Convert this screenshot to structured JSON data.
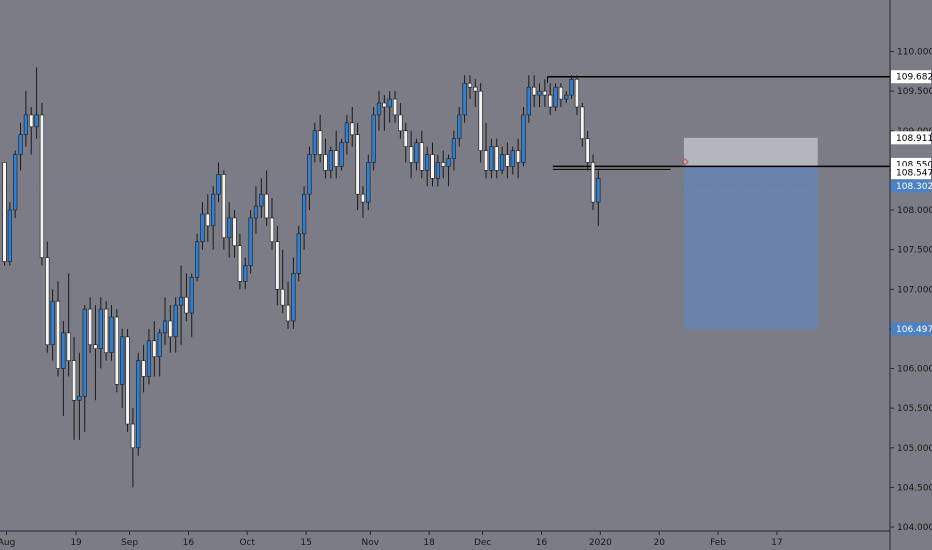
{
  "chart_data": {
    "type": "candlestick",
    "title": "",
    "xlabel": "",
    "ylabel": "",
    "ylim": [
      103.95,
      110.65
    ],
    "y_ticks": [
      "104.000",
      "104.500",
      "105.000",
      "105.500",
      "106.000",
      "106.500",
      "107.000",
      "107.500",
      "108.000",
      "108.500",
      "109.000",
      "109.500",
      "110.000"
    ],
    "x_ticks": [
      {
        "label": "Aug",
        "bar": 0
      },
      {
        "label": "19",
        "bar": 13
      },
      {
        "label": "Sep",
        "bar": 23
      },
      {
        "label": "16",
        "bar": 34
      },
      {
        "label": "Oct",
        "bar": 45
      },
      {
        "label": "15",
        "bar": 56
      },
      {
        "label": "Nov",
        "bar": 68
      },
      {
        "label": "18",
        "bar": 79
      },
      {
        "label": "Dec",
        "bar": 89
      },
      {
        "label": "16",
        "bar": 100
      },
      {
        "label": "2020",
        "bar": 111
      },
      {
        "label": "20",
        "bar": 122
      },
      {
        "label": "Feb",
        "bar": 133
      },
      {
        "label": "17",
        "bar": 144
      }
    ],
    "bars": [
      [
        108.6,
        108.6,
        107.3,
        107.35
      ],
      [
        107.35,
        108.1,
        107.3,
        108.0
      ],
      [
        108.0,
        108.75,
        107.9,
        108.7
      ],
      [
        108.7,
        109.1,
        108.5,
        108.95
      ],
      [
        108.95,
        109.5,
        108.8,
        109.2
      ],
      [
        109.2,
        109.3,
        108.7,
        109.05
      ],
      [
        109.05,
        109.8,
        108.9,
        109.2
      ],
      [
        109.2,
        109.35,
        107.3,
        107.4
      ],
      [
        107.4,
        107.6,
        106.2,
        106.3
      ],
      [
        106.3,
        107.0,
        106.1,
        106.85
      ],
      [
        106.85,
        107.1,
        105.9,
        106.0
      ],
      [
        106.0,
        106.6,
        105.4,
        106.45
      ],
      [
        106.45,
        107.2,
        105.9,
        106.1
      ],
      [
        106.1,
        106.4,
        105.1,
        105.6
      ],
      [
        105.6,
        106.2,
        105.1,
        105.65
      ],
      [
        105.65,
        106.8,
        105.2,
        106.75
      ],
      [
        106.75,
        106.9,
        106.2,
        106.3
      ],
      [
        106.3,
        106.8,
        105.6,
        106.25
      ],
      [
        106.25,
        106.9,
        106.0,
        106.75
      ],
      [
        106.75,
        106.85,
        106.1,
        106.2
      ],
      [
        106.2,
        106.8,
        106.1,
        106.65
      ],
      [
        106.65,
        106.75,
        105.7,
        105.8
      ],
      [
        105.8,
        106.5,
        105.5,
        106.4
      ],
      [
        106.4,
        106.5,
        105.2,
        105.3
      ],
      [
        105.3,
        105.5,
        104.5,
        105.0
      ],
      [
        105.0,
        106.2,
        104.9,
        106.1
      ],
      [
        106.1,
        106.3,
        105.7,
        105.9
      ],
      [
        105.9,
        106.5,
        105.8,
        106.35
      ],
      [
        106.35,
        106.6,
        105.9,
        106.15
      ],
      [
        106.15,
        106.5,
        105.9,
        106.45
      ],
      [
        106.45,
        106.9,
        106.3,
        106.6
      ],
      [
        106.6,
        106.8,
        106.2,
        106.4
      ],
      [
        106.4,
        106.9,
        106.2,
        106.8
      ],
      [
        106.8,
        107.3,
        106.3,
        106.9
      ],
      [
        106.9,
        107.2,
        106.6,
        106.7
      ],
      [
        106.7,
        107.2,
        106.4,
        107.15
      ],
      [
        107.15,
        107.7,
        107.1,
        107.6
      ],
      [
        107.6,
        108.1,
        107.5,
        107.95
      ],
      [
        107.95,
        108.2,
        107.6,
        107.8
      ],
      [
        107.8,
        108.3,
        107.5,
        108.2
      ],
      [
        108.2,
        108.6,
        108.1,
        108.45
      ],
      [
        108.45,
        108.5,
        107.5,
        107.65
      ],
      [
        107.65,
        108.1,
        107.4,
        107.9
      ],
      [
        107.9,
        108.0,
        107.4,
        107.55
      ],
      [
        107.55,
        107.7,
        107.0,
        107.1
      ],
      [
        107.1,
        107.4,
        107.0,
        107.3
      ],
      [
        107.3,
        108.0,
        107.2,
        107.9
      ],
      [
        107.9,
        108.3,
        107.7,
        108.05
      ],
      [
        108.05,
        108.4,
        107.9,
        108.2
      ],
      [
        108.2,
        108.5,
        107.8,
        107.9
      ],
      [
        107.9,
        108.15,
        107.5,
        107.6
      ],
      [
        107.6,
        107.8,
        106.8,
        107.0
      ],
      [
        107.0,
        107.5,
        106.7,
        106.8
      ],
      [
        106.8,
        107.1,
        106.5,
        106.6
      ],
      [
        106.6,
        107.4,
        106.5,
        107.2
      ],
      [
        107.2,
        107.8,
        107.1,
        107.7
      ],
      [
        107.7,
        108.3,
        107.5,
        108.2
      ],
      [
        108.2,
        108.8,
        108.0,
        108.7
      ],
      [
        108.7,
        109.1,
        108.6,
        109.0
      ],
      [
        109.0,
        109.2,
        108.6,
        108.7
      ],
      [
        108.7,
        108.9,
        108.4,
        108.5
      ],
      [
        108.5,
        108.8,
        108.4,
        108.75
      ],
      [
        108.75,
        109.0,
        108.4,
        108.55
      ],
      [
        108.55,
        108.9,
        108.5,
        108.85
      ],
      [
        108.85,
        109.2,
        108.7,
        109.1
      ],
      [
        109.1,
        109.3,
        108.8,
        108.95
      ],
      [
        108.95,
        109.1,
        108.0,
        108.2
      ],
      [
        108.2,
        108.3,
        107.9,
        108.1
      ],
      [
        108.1,
        108.7,
        108.0,
        108.6
      ],
      [
        108.6,
        109.3,
        108.5,
        109.2
      ],
      [
        109.2,
        109.5,
        109.0,
        109.35
      ],
      [
        109.35,
        109.45,
        109.0,
        109.3
      ],
      [
        109.3,
        109.5,
        109.1,
        109.4
      ],
      [
        109.4,
        109.5,
        109.1,
        109.2
      ],
      [
        109.2,
        109.35,
        108.9,
        109.0
      ],
      [
        109.0,
        109.1,
        108.6,
        108.8
      ],
      [
        108.8,
        109.0,
        108.4,
        108.6
      ],
      [
        108.6,
        108.9,
        108.5,
        108.85
      ],
      [
        108.85,
        109.0,
        108.4,
        108.5
      ],
      [
        108.5,
        108.8,
        108.3,
        108.7
      ],
      [
        108.7,
        108.85,
        108.3,
        108.4
      ],
      [
        108.4,
        108.7,
        108.3,
        108.6
      ],
      [
        108.6,
        108.75,
        108.4,
        108.55
      ],
      [
        108.55,
        108.7,
        108.3,
        108.65
      ],
      [
        108.65,
        109.0,
        108.5,
        108.9
      ],
      [
        108.9,
        109.3,
        108.8,
        109.2
      ],
      [
        109.2,
        109.7,
        109.1,
        109.6
      ],
      [
        109.6,
        109.7,
        109.4,
        109.55
      ],
      [
        109.55,
        109.65,
        109.3,
        109.5
      ],
      [
        109.5,
        109.6,
        108.6,
        108.75
      ],
      [
        108.75,
        109.1,
        108.4,
        108.5
      ],
      [
        108.5,
        108.9,
        108.4,
        108.8
      ],
      [
        108.8,
        108.9,
        108.4,
        108.5
      ],
      [
        108.5,
        108.8,
        108.45,
        108.7
      ],
      [
        108.7,
        108.85,
        108.4,
        108.55
      ],
      [
        108.55,
        108.8,
        108.45,
        108.75
      ],
      [
        108.75,
        108.9,
        108.4,
        108.6
      ],
      [
        108.6,
        109.3,
        108.55,
        109.2
      ],
      [
        109.2,
        109.7,
        109.1,
        109.55
      ],
      [
        109.55,
        109.7,
        109.3,
        109.45
      ],
      [
        109.45,
        109.6,
        109.3,
        109.5
      ],
      [
        109.5,
        109.65,
        109.3,
        109.45
      ],
      [
        109.45,
        109.6,
        109.2,
        109.3
      ],
      [
        109.3,
        109.6,
        109.25,
        109.55
      ],
      [
        109.55,
        109.6,
        109.3,
        109.4
      ],
      [
        109.4,
        109.5,
        109.35,
        109.45
      ],
      [
        109.45,
        109.7,
        109.4,
        109.65
      ],
      [
        109.65,
        109.7,
        109.2,
        109.3
      ],
      [
        109.3,
        109.35,
        108.8,
        108.9
      ],
      [
        108.9,
        109.0,
        108.5,
        108.6
      ],
      [
        108.6,
        108.7,
        108.0,
        108.1
      ],
      [
        108.1,
        108.5,
        107.8,
        108.4
      ]
    ],
    "current_price": 108.302,
    "levels": [
      {
        "value": 109.682,
        "label": "109.682"
      },
      {
        "value": 108.55,
        "label": "108.550"
      }
    ],
    "position": {
      "entry": 108.547,
      "stop": 108.911,
      "target": 106.497,
      "entry_label": "108.547",
      "stop_label": "108.911",
      "target_label": "106.497"
    },
    "colors": {
      "background": "#7b7c85",
      "up_body": "#2f7fd4",
      "down_body": "#f4f4f4",
      "wick": "#1a1a1a",
      "current_price_line": "#4a7fbf",
      "stop_zone": "#b4b6bd",
      "target_zone": "#6b82ab",
      "level_line": "#000000"
    }
  }
}
